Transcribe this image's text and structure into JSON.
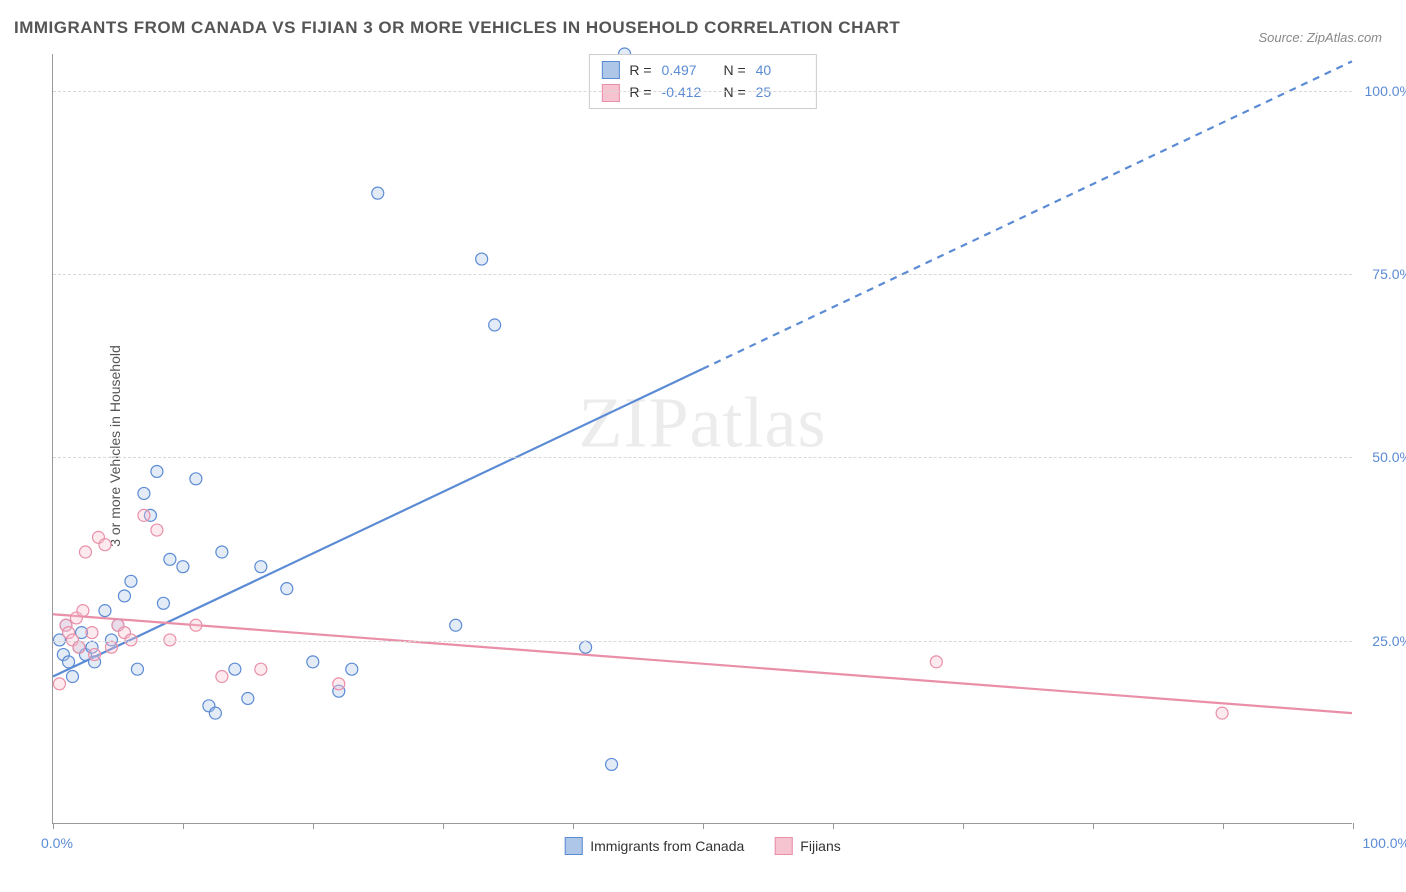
{
  "title": "IMMIGRANTS FROM CANADA VS FIJIAN 3 OR MORE VEHICLES IN HOUSEHOLD CORRELATION CHART",
  "source": "Source: ZipAtlas.com",
  "y_axis_label": "3 or more Vehicles in Household",
  "watermark": "ZIPatlas",
  "chart": {
    "type": "scatter",
    "xlim": [
      0,
      100
    ],
    "ylim": [
      0,
      105
    ],
    "y_ticks": [
      25,
      50,
      75,
      100
    ],
    "y_tick_labels": [
      "25.0%",
      "50.0%",
      "75.0%",
      "100.0%"
    ],
    "x_tick_labels": {
      "min": "0.0%",
      "max": "100.0%"
    },
    "x_ticks_minor": [
      0,
      10,
      20,
      30,
      40,
      50,
      60,
      70,
      80,
      90,
      100
    ],
    "background_color": "#ffffff",
    "grid_color": "#d8d8d8",
    "marker_radius": 6,
    "marker_stroke_width": 1.2,
    "marker_fill_opacity": 0.35
  },
  "series": [
    {
      "name": "Immigrants from Canada",
      "color": "#5b8bd4",
      "fill": "#aec6e8",
      "r": "0.497",
      "n": "40",
      "regression": {
        "x1": 0,
        "y1": 20,
        "x2": 50,
        "y2": 62,
        "dash_x2": 100,
        "dash_y2": 104,
        "width": 2.2
      },
      "points": [
        [
          0.5,
          25
        ],
        [
          0.8,
          23
        ],
        [
          1.0,
          27
        ],
        [
          1.2,
          22
        ],
        [
          1.5,
          20
        ],
        [
          2.0,
          24
        ],
        [
          2.2,
          26
        ],
        [
          2.5,
          23
        ],
        [
          3.0,
          24
        ],
        [
          3.2,
          22
        ],
        [
          4.0,
          29
        ],
        [
          4.5,
          25
        ],
        [
          5.0,
          27
        ],
        [
          5.5,
          31
        ],
        [
          6.0,
          33
        ],
        [
          6.5,
          21
        ],
        [
          7.0,
          45
        ],
        [
          7.5,
          42
        ],
        [
          8.0,
          48
        ],
        [
          8.5,
          30
        ],
        [
          9.0,
          36
        ],
        [
          10.0,
          35
        ],
        [
          11.0,
          47
        ],
        [
          12.0,
          16
        ],
        [
          12.5,
          15
        ],
        [
          13.0,
          37
        ],
        [
          14.0,
          21
        ],
        [
          15.0,
          17
        ],
        [
          16.0,
          35
        ],
        [
          18.0,
          32
        ],
        [
          20.0,
          22
        ],
        [
          22.0,
          18
        ],
        [
          23.0,
          21
        ],
        [
          25.0,
          86
        ],
        [
          31.0,
          27
        ],
        [
          33.0,
          77
        ],
        [
          34.0,
          68
        ],
        [
          41.0,
          24
        ],
        [
          43.0,
          8
        ],
        [
          44.0,
          105
        ]
      ]
    },
    {
      "name": "Fijians",
      "color": "#e98fa8",
      "fill": "#f6c3d0",
      "r": "-0.412",
      "n": "25",
      "regression": {
        "x1": 0,
        "y1": 28.5,
        "x2": 100,
        "y2": 15,
        "width": 2.2
      },
      "points": [
        [
          0.5,
          19
        ],
        [
          1.0,
          27
        ],
        [
          1.2,
          26
        ],
        [
          1.5,
          25
        ],
        [
          1.8,
          28
        ],
        [
          2.0,
          24
        ],
        [
          2.3,
          29
        ],
        [
          2.5,
          37
        ],
        [
          3.0,
          26
        ],
        [
          3.2,
          23
        ],
        [
          3.5,
          39
        ],
        [
          4.0,
          38
        ],
        [
          4.5,
          24
        ],
        [
          5.0,
          27
        ],
        [
          5.5,
          26
        ],
        [
          6.0,
          25
        ],
        [
          7.0,
          42
        ],
        [
          8.0,
          40
        ],
        [
          9.0,
          25
        ],
        [
          11.0,
          27
        ],
        [
          13.0,
          20
        ],
        [
          16.0,
          21
        ],
        [
          22.0,
          19
        ],
        [
          68.0,
          22
        ],
        [
          90.0,
          15
        ]
      ]
    }
  ]
}
